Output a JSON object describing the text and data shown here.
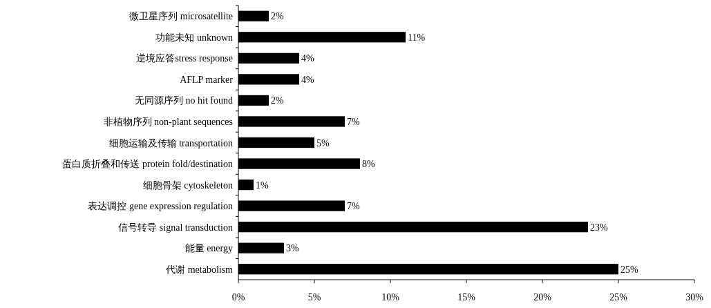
{
  "chart_data": {
    "type": "bar",
    "orientation": "horizontal",
    "categories": [
      "微卫星序列 microsatellite",
      "功能未知 unknown",
      "逆境应答stress response",
      "AFLP marker",
      "无同源序列 no hit found",
      "非植物序列 non-plant sequences",
      "细胞运输及传输 transportation",
      "蛋白质折叠和传送 protein fold/destination",
      "细胞骨架 cytoskeleton",
      "表达调控 gene expression regulation",
      "信号转导 signal transduction",
      "能量 energy",
      "代谢 metabolism"
    ],
    "values": [
      2,
      11,
      4,
      4,
      2,
      7,
      5,
      8,
      1,
      7,
      23,
      3,
      25
    ],
    "value_labels": [
      "2%",
      "11%",
      "4%",
      "4%",
      "2%",
      "7%",
      "5%",
      "8%",
      "1%",
      "7%",
      "23%",
      "3%",
      "25%"
    ],
    "color": "#000000",
    "xlim": [
      0,
      30
    ],
    "xticks": [
      {
        "value": 0,
        "label": "0%"
      },
      {
        "value": 5,
        "label": "5%"
      },
      {
        "value": 10,
        "label": "10%"
      },
      {
        "value": 15,
        "label": "15%"
      },
      {
        "value": 20,
        "label": "20%"
      },
      {
        "value": 25,
        "label": "25%"
      },
      {
        "value": 30,
        "label": "30%"
      }
    ],
    "grid": false
  }
}
